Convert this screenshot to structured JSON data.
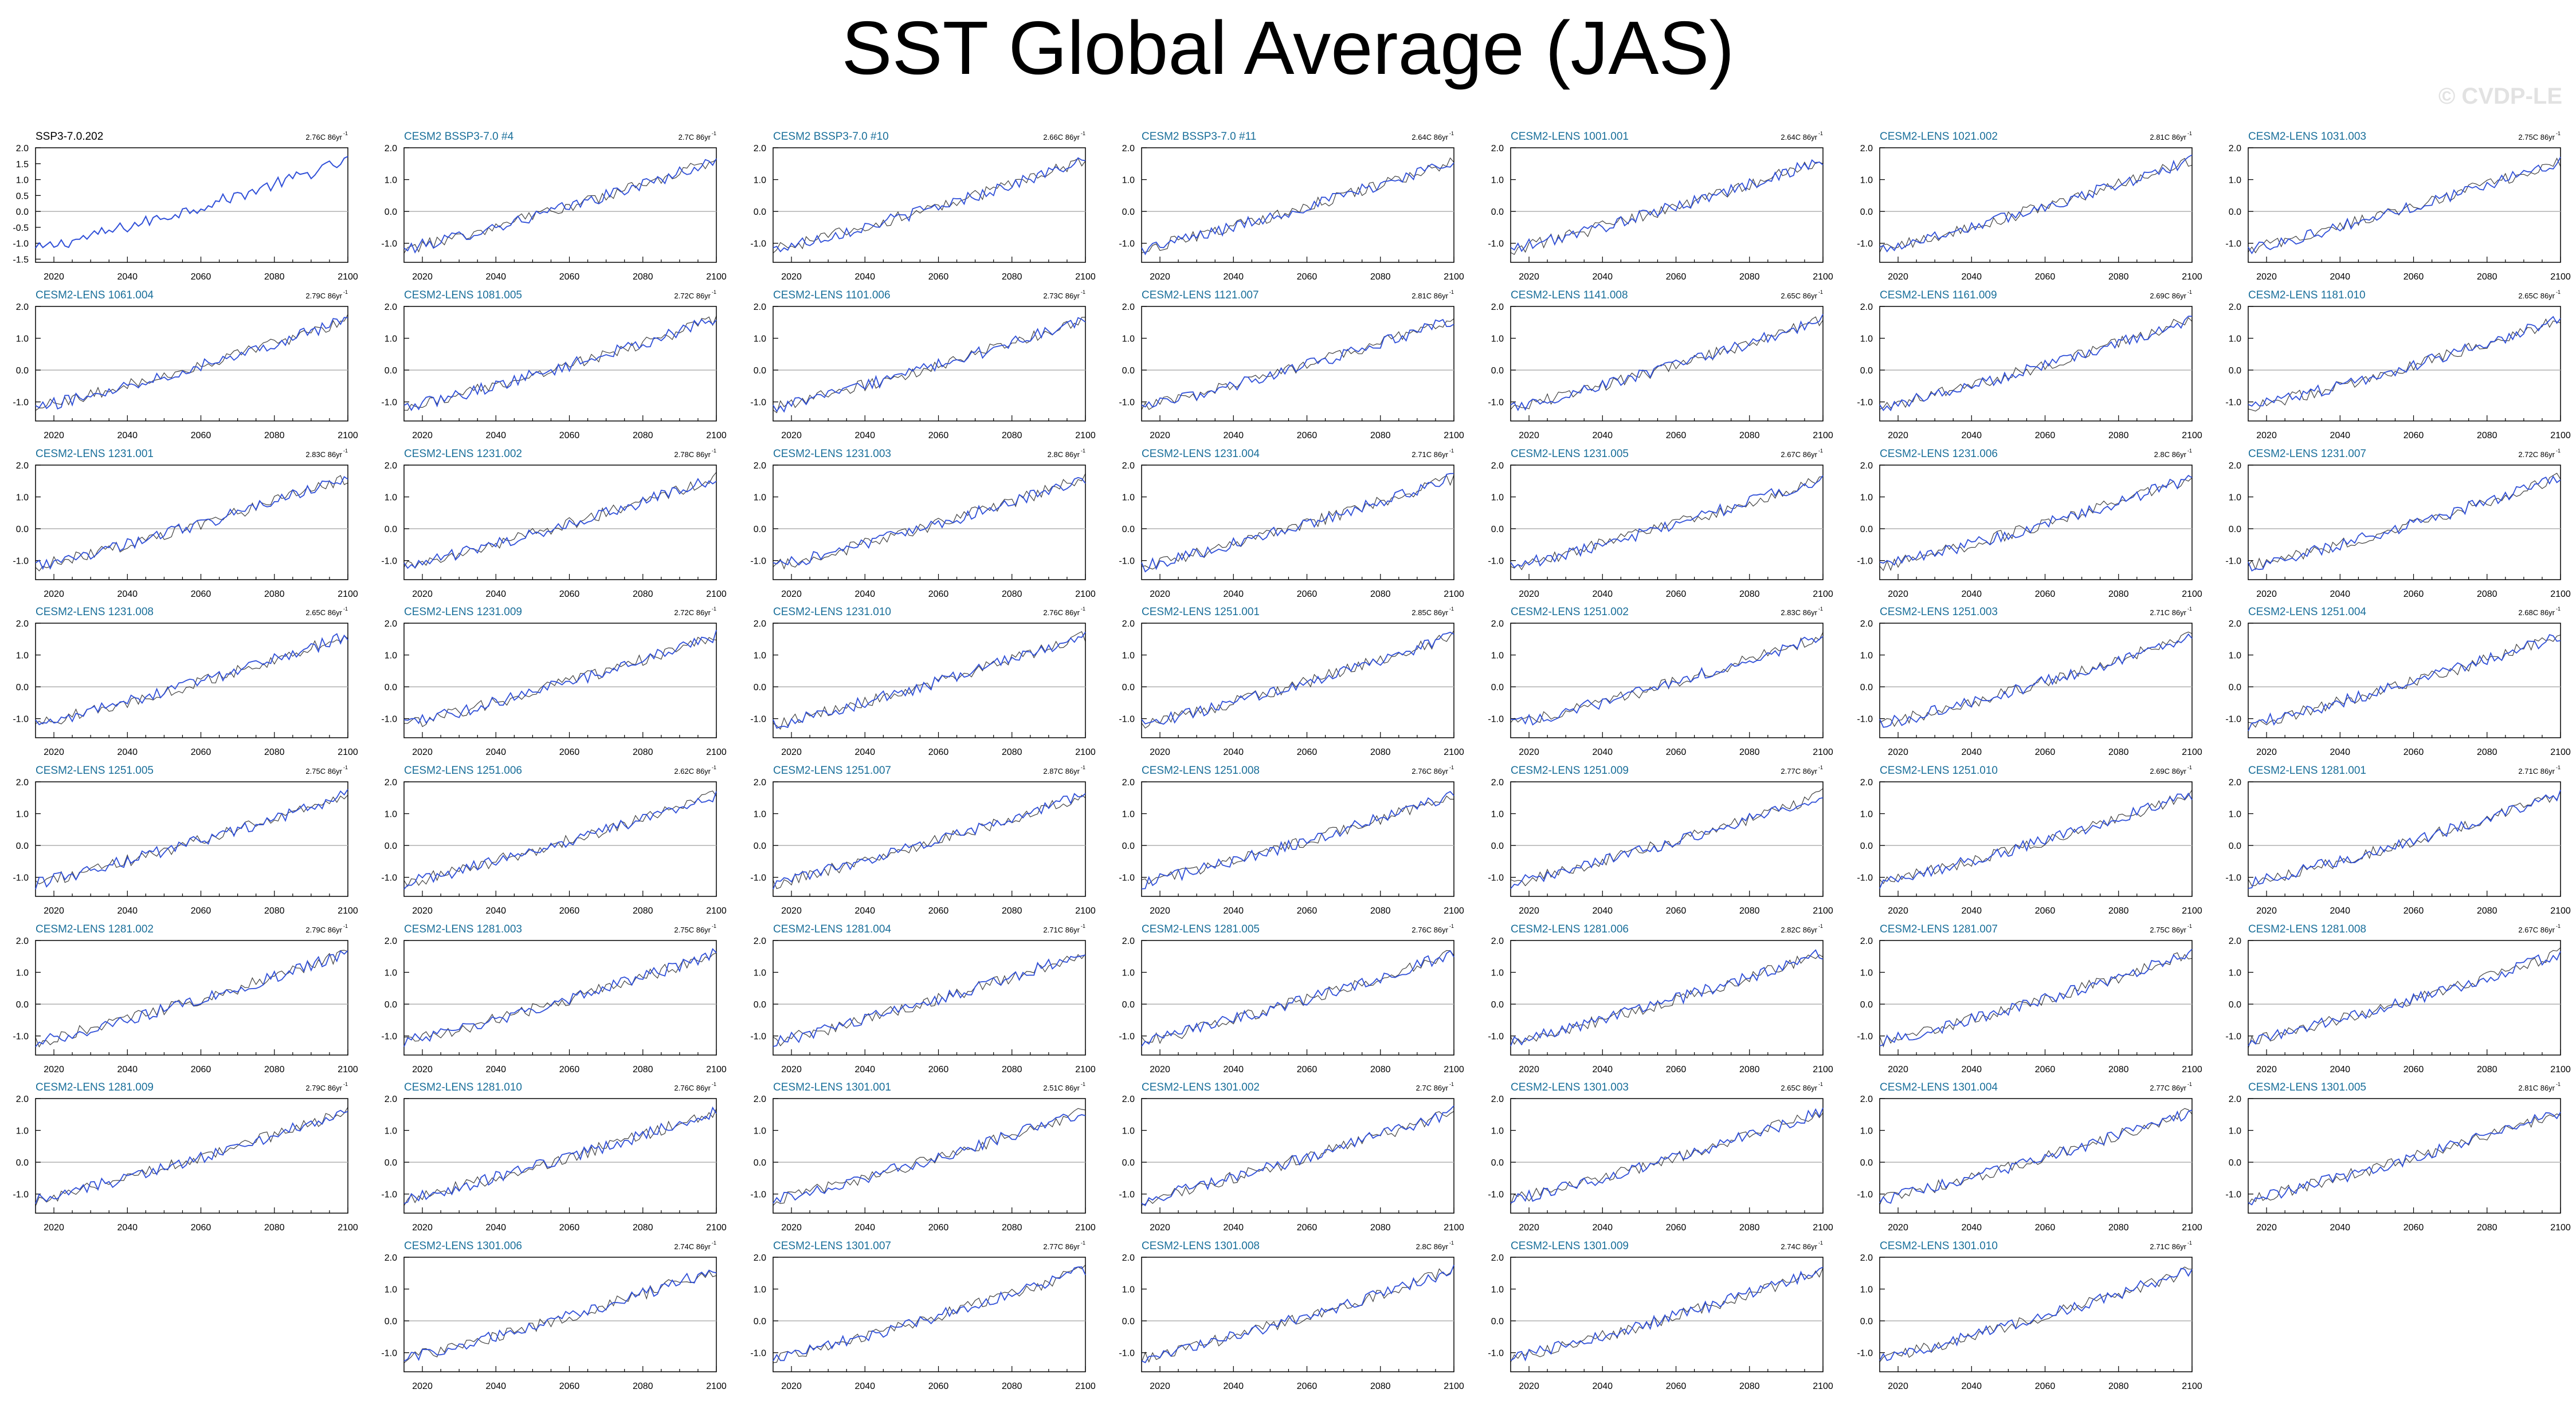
{
  "title": "SST Global Average (JAS)",
  "watermark": "© CVDP-LE",
  "colors": {
    "observed": "#000000",
    "model": "#2f4fd8",
    "model_title": "#1a6f9a",
    "obs_title": "#000000",
    "zero_line": "#b0b0b0"
  },
  "chart_data": {
    "type": "line",
    "layout": "small-multiples",
    "x_range": [
      2015,
      2100
    ],
    "x_ticks": [
      2020,
      2040,
      2060,
      2080,
      2100
    ],
    "first_panel": {
      "title": "SSP3-7.0.202",
      "trend": "2.76C 86yr",
      "ylim": [
        -1.6,
        2.0
      ],
      "y_ticks": [
        "2.0",
        "1.5",
        "1.0",
        "0.5",
        "0.0",
        "-0.5",
        "-1.0",
        "-1.5"
      ],
      "y_values": [
        2.0,
        1.5,
        1.0,
        0.5,
        0.0,
        -0.5,
        -1.0,
        -1.5
      ]
    },
    "member_panel": {
      "ylim": [
        -1.6,
        2.0
      ],
      "y_ticks": [
        "2.0",
        "1.0",
        "0.0",
        "-1.0"
      ],
      "y_values": [
        2.0,
        1.0,
        0.0,
        -1.0
      ]
    },
    "trend_unit": "yr",
    "trend_exponent": "-1",
    "panels": [
      {
        "title": "SSP3-7.0.202",
        "trend": "2.76C 86yr",
        "obs": true
      },
      {
        "title": "CESM2 BSSP3-7.0 #4",
        "trend": "2.7C 86yr"
      },
      {
        "title": "CESM2 BSSP3-7.0 #10",
        "trend": "2.66C 86yr"
      },
      {
        "title": "CESM2 BSSP3-7.0 #11",
        "trend": "2.64C 86yr"
      },
      {
        "title": "CESM2-LENS 1001.001",
        "trend": "2.64C 86yr"
      },
      {
        "title": "CESM2-LENS 1021.002",
        "trend": "2.81C 86yr"
      },
      {
        "title": "CESM2-LENS 1031.003",
        "trend": "2.75C 86yr"
      },
      {
        "title": "CESM2-LENS 1061.004",
        "trend": "2.79C 86yr"
      },
      {
        "title": "CESM2-LENS 1081.005",
        "trend": "2.72C 86yr"
      },
      {
        "title": "CESM2-LENS 1101.006",
        "trend": "2.73C 86yr"
      },
      {
        "title": "CESM2-LENS 1121.007",
        "trend": "2.81C 86yr"
      },
      {
        "title": "CESM2-LENS 1141.008",
        "trend": "2.65C 86yr"
      },
      {
        "title": "CESM2-LENS 1161.009",
        "trend": "2.69C 86yr"
      },
      {
        "title": "CESM2-LENS 1181.010",
        "trend": "2.65C 86yr"
      },
      {
        "title": "CESM2-LENS 1231.001",
        "trend": "2.83C 86yr"
      },
      {
        "title": "CESM2-LENS 1231.002",
        "trend": "2.78C 86yr"
      },
      {
        "title": "CESM2-LENS 1231.003",
        "trend": "2.8C 86yr"
      },
      {
        "title": "CESM2-LENS 1231.004",
        "trend": "2.71C 86yr"
      },
      {
        "title": "CESM2-LENS 1231.005",
        "trend": "2.67C 86yr"
      },
      {
        "title": "CESM2-LENS 1231.006",
        "trend": "2.8C 86yr"
      },
      {
        "title": "CESM2-LENS 1231.007",
        "trend": "2.72C 86yr"
      },
      {
        "title": "CESM2-LENS 1231.008",
        "trend": "2.65C 86yr"
      },
      {
        "title": "CESM2-LENS 1231.009",
        "trend": "2.72C 86yr"
      },
      {
        "title": "CESM2-LENS 1231.010",
        "trend": "2.76C 86yr"
      },
      {
        "title": "CESM2-LENS 1251.001",
        "trend": "2.85C 86yr"
      },
      {
        "title": "CESM2-LENS 1251.002",
        "trend": "2.83C 86yr"
      },
      {
        "title": "CESM2-LENS 1251.003",
        "trend": "2.71C 86yr"
      },
      {
        "title": "CESM2-LENS 1251.004",
        "trend": "2.68C 86yr"
      },
      {
        "title": "CESM2-LENS 1251.005",
        "trend": "2.75C 86yr"
      },
      {
        "title": "CESM2-LENS 1251.006",
        "trend": "2.62C 86yr"
      },
      {
        "title": "CESM2-LENS 1251.007",
        "trend": "2.87C 86yr"
      },
      {
        "title": "CESM2-LENS 1251.008",
        "trend": "2.76C 86yr"
      },
      {
        "title": "CESM2-LENS 1251.009",
        "trend": "2.77C 86yr"
      },
      {
        "title": "CESM2-LENS 1251.010",
        "trend": "2.69C 86yr"
      },
      {
        "title": "CESM2-LENS 1281.001",
        "trend": "2.71C 86yr"
      },
      {
        "title": "CESM2-LENS 1281.002",
        "trend": "2.79C 86yr"
      },
      {
        "title": "CESM2-LENS 1281.003",
        "trend": "2.75C 86yr"
      },
      {
        "title": "CESM2-LENS 1281.004",
        "trend": "2.71C 86yr"
      },
      {
        "title": "CESM2-LENS 1281.005",
        "trend": "2.76C 86yr"
      },
      {
        "title": "CESM2-LENS 1281.006",
        "trend": "2.82C 86yr"
      },
      {
        "title": "CESM2-LENS 1281.007",
        "trend": "2.75C 86yr"
      },
      {
        "title": "CESM2-LENS 1281.008",
        "trend": "2.67C 86yr"
      },
      {
        "title": "CESM2-LENS 1281.009",
        "trend": "2.79C 86yr"
      },
      {
        "title": "CESM2-LENS 1281.010",
        "trend": "2.76C 86yr"
      },
      {
        "title": "CESM2-LENS 1301.001",
        "trend": "2.51C 86yr"
      },
      {
        "title": "CESM2-LENS 1301.002",
        "trend": "2.7C 86yr"
      },
      {
        "title": "CESM2-LENS 1301.003",
        "trend": "2.65C 86yr"
      },
      {
        "title": "CESM2-LENS 1301.004",
        "trend": "2.77C 86yr"
      },
      {
        "title": "CESM2-LENS 1301.005",
        "trend": "2.81C 86yr"
      },
      {
        "title": "CESM2-LENS 1301.006",
        "trend": "2.74C 86yr"
      },
      {
        "title": "CESM2-LENS 1301.007",
        "trend": "2.77C 86yr"
      },
      {
        "title": "CESM2-LENS 1301.008",
        "trend": "2.8C 86yr"
      },
      {
        "title": "CESM2-LENS 1301.009",
        "trend": "2.74C 86yr"
      },
      {
        "title": "CESM2-LENS 1301.010",
        "trend": "2.71C 86yr"
      }
    ],
    "series_note_shape": {
      "start_value": -1.2,
      "end_value": 1.6,
      "curvature": "upward-accelerating"
    }
  }
}
